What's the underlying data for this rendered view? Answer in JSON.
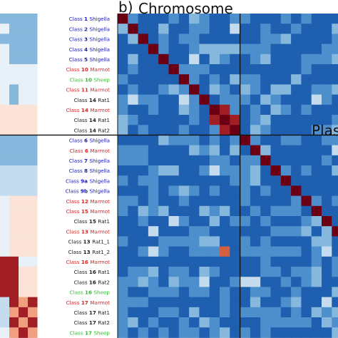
{
  "chart_data": [
    {
      "type": "heatmap",
      "panel": "b)",
      "title": "Chromosome",
      "title_right": "Plas",
      "row_labels": [
        {
          "cls": "Class",
          "num": "1",
          "host": "Shigella",
          "color": "#1a1ab8"
        },
        {
          "cls": "Class",
          "num": "2",
          "host": "Shigella",
          "color": "#1a1ab8"
        },
        {
          "cls": "Class",
          "num": "3",
          "host": "Shigella",
          "color": "#1a1ab8"
        },
        {
          "cls": "Class",
          "num": "4",
          "host": "Shigella",
          "color": "#1a1ab8"
        },
        {
          "cls": "Class",
          "num": "5",
          "host": "Shigella",
          "color": "#1a1ab8"
        },
        {
          "cls": "Class",
          "num": "10",
          "host": "Marmot",
          "color": "#d42a2a"
        },
        {
          "cls": "Class",
          "num": "10",
          "host": "Sheep",
          "color": "#2ec22e"
        },
        {
          "cls": "Class",
          "num": "11",
          "host": "Marmot",
          "color": "#d42a2a"
        },
        {
          "cls": "Class",
          "num": "14",
          "host": "Rat1",
          "color": "#222222"
        },
        {
          "cls": "Class",
          "num": "14",
          "host": "Marmot",
          "color": "#d42a2a"
        },
        {
          "cls": "Class",
          "num": "14",
          "host": "Rat1",
          "color": "#222222"
        },
        {
          "cls": "Class",
          "num": "14",
          "host": "Rat2",
          "color": "#222222"
        },
        {
          "cls": "Class",
          "num": "6",
          "host": "Shigella",
          "color": "#1a1ab8"
        },
        {
          "cls": "Class",
          "num": "6",
          "host": "Marmot",
          "color": "#d42a2a"
        },
        {
          "cls": "Class",
          "num": "7",
          "host": "Shigella",
          "color": "#1a1ab8"
        },
        {
          "cls": "Class",
          "num": "8",
          "host": "Shigella",
          "color": "#1a1ab8"
        },
        {
          "cls": "Class",
          "num": "9a",
          "host": "Shigella",
          "color": "#1a1ab8"
        },
        {
          "cls": "Class",
          "num": "9b",
          "host": "Shigella",
          "color": "#1a1ab8"
        },
        {
          "cls": "Class",
          "num": "12",
          "host": "Marmot",
          "color": "#d42a2a"
        },
        {
          "cls": "Class",
          "num": "15",
          "host": "Marmot",
          "color": "#d42a2a"
        },
        {
          "cls": "Class",
          "num": "15",
          "host": "Rat1",
          "color": "#222222"
        },
        {
          "cls": "Class",
          "num": "13",
          "host": "Marmot",
          "color": "#d42a2a"
        },
        {
          "cls": "Class",
          "num": "13",
          "host": "Rat1_1",
          "color": "#222222"
        },
        {
          "cls": "Class",
          "num": "13",
          "host": "Rat1_2",
          "color": "#222222"
        },
        {
          "cls": "Class",
          "num": "16",
          "host": "Marmot",
          "color": "#d42a2a"
        },
        {
          "cls": "Class",
          "num": "16",
          "host": "Rat1",
          "color": "#222222"
        },
        {
          "cls": "Class",
          "num": "16",
          "host": "Rat2",
          "color": "#222222"
        },
        {
          "cls": "Class",
          "num": "16",
          "host": "Sheep",
          "color": "#2ec22e"
        },
        {
          "cls": "Class",
          "num": "17",
          "host": "Marmot",
          "color": "#d42a2a"
        },
        {
          "cls": "Class",
          "num": "17",
          "host": "Rat1",
          "color": "#222222"
        },
        {
          "cls": "Class",
          "num": "17",
          "host": "Rat2",
          "color": "#222222"
        },
        {
          "cls": "Class",
          "num": "17",
          "host": "Sheep",
          "color": "#2ec22e"
        }
      ],
      "group_split_after_row": 11,
      "legend_position": "none",
      "grid": false,
      "colors": {
        "scale": [
          "#1f5fb0",
          "#4d8fcc",
          "#86b8dd",
          "#c5dcee",
          "#e8f1f8",
          "#fbe3d8",
          "#f0a07f",
          "#d4603f",
          "#a11e24",
          "#6b0014"
        ],
        "divider": "#111111"
      }
    }
  ]
}
